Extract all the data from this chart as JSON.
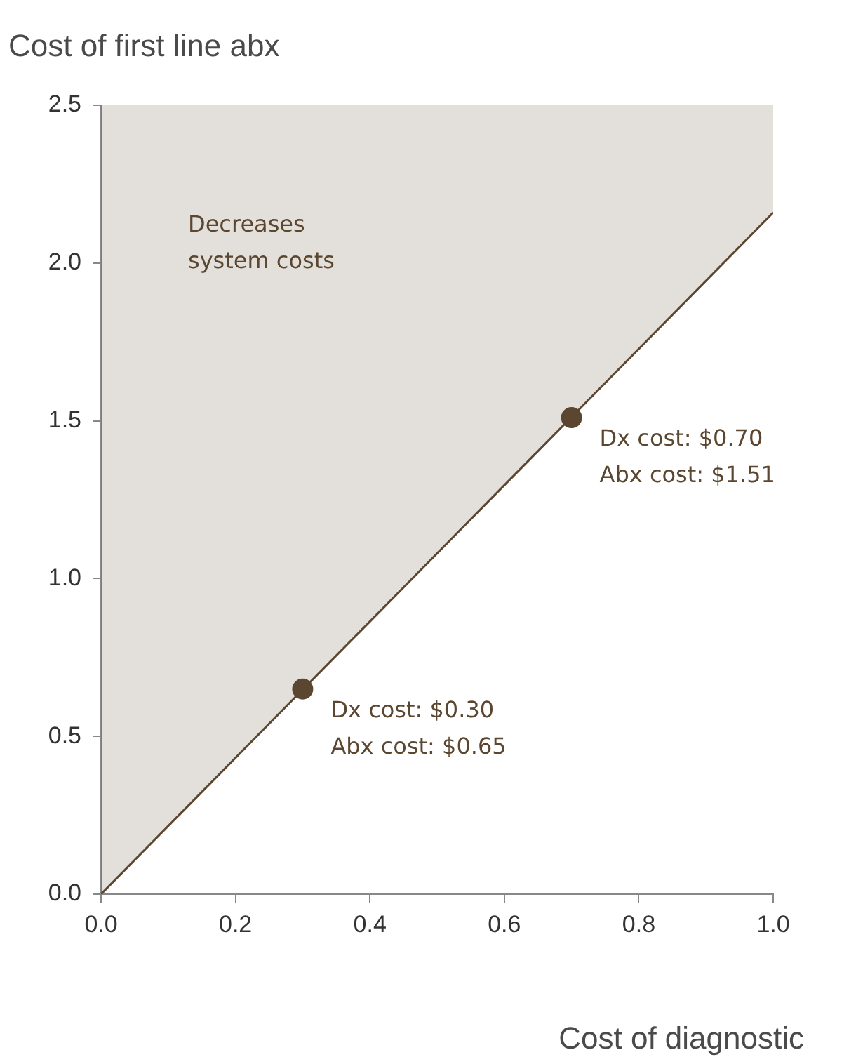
{
  "chart_data": {
    "type": "line",
    "ylabel": "Cost of first line abx",
    "xlabel": "Cost of diagnostic",
    "xlim": [
      0,
      1.0
    ],
    "xticks": [
      {
        "value": 0,
        "label": "0.0"
      },
      0.2,
      0.4,
      0.6,
      0.8,
      {
        "value": 1,
        "label": "1.0"
      }
    ],
    "ylim": [
      0,
      2.5
    ],
    "yticks": [
      {
        "value": 0,
        "label": "0.0"
      },
      0.5,
      {
        "value": 1,
        "label": "1.0"
      },
      1.5,
      {
        "value": 2,
        "label": "2.0"
      },
      2.5
    ],
    "grid": false,
    "legend": false,
    "series": [
      {
        "color": "#5b4630",
        "x": [
          0,
          1.0
        ],
        "values": [
          0,
          2.16
        ],
        "lower": [
          0,
          2.16
        ],
        "upper": [
          2.5,
          2.5
        ]
      },
      {
        "type": "scatter",
        "color": "#5b4630",
        "x": [
          0.3,
          0.7
        ],
        "values": [
          0.65,
          1.51
        ]
      }
    ],
    "annotations": [
      "Decreases\nsystem costs",
      {
        "text": "Dx cost: $0.70\nAbx cost: $1.51",
        "x": 0.7,
        "y": 1.51
      },
      {
        "text": "Dx cost: $0.30\nAbx cost: $0.65",
        "x": 0.3,
        "y": 0.65
      }
    ]
  }
}
